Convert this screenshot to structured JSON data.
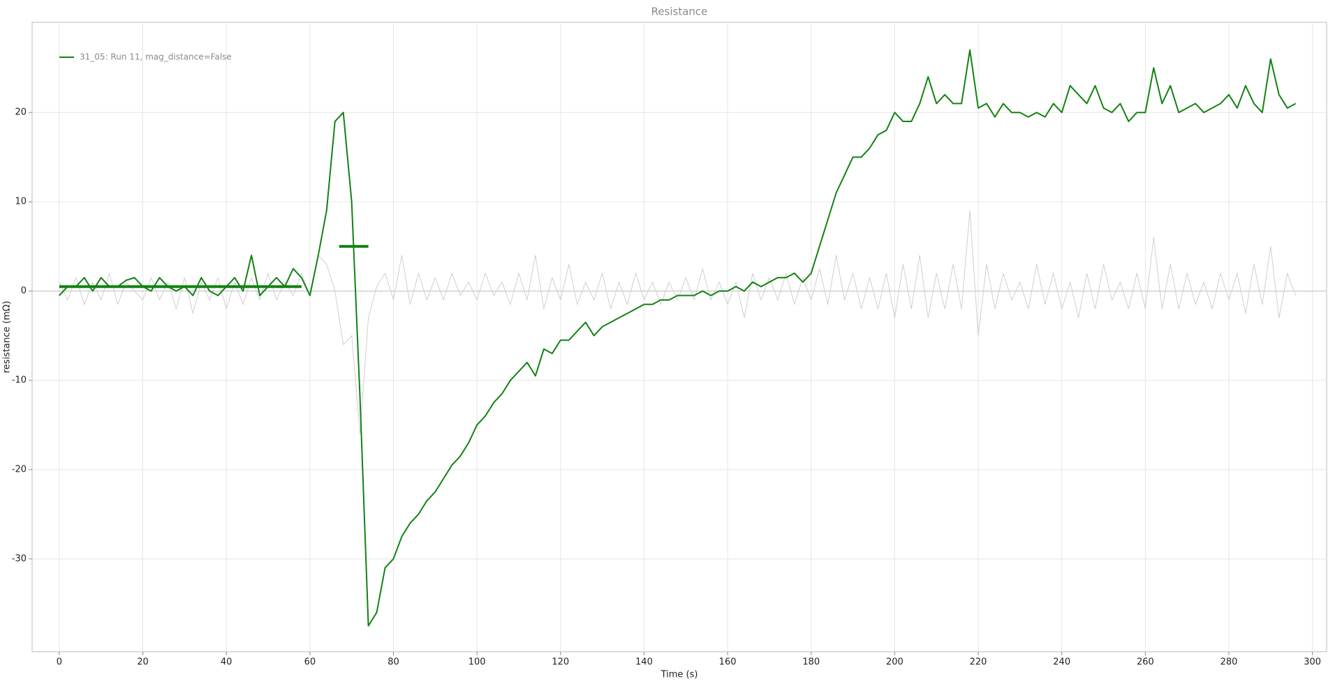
{
  "chart_data": {
    "type": "line",
    "title": "Resistance",
    "x_label": "Time (s)",
    "y_label": "resistance (mΩ)",
    "x": [
      0,
      2,
      4,
      6,
      8,
      10,
      12,
      14,
      16,
      18,
      20,
      22,
      24,
      26,
      28,
      30,
      32,
      34,
      36,
      38,
      40,
      42,
      44,
      46,
      48,
      50,
      52,
      54,
      56,
      58,
      60,
      62,
      64,
      66,
      68,
      70,
      72,
      74,
      76,
      78,
      80,
      82,
      84,
      86,
      88,
      90,
      92,
      94,
      96,
      98,
      100,
      102,
      104,
      106,
      108,
      110,
      112,
      114,
      116,
      118,
      120,
      122,
      124,
      126,
      128,
      130,
      132,
      134,
      136,
      138,
      140,
      142,
      144,
      146,
      148,
      150,
      152,
      154,
      156,
      158,
      160,
      162,
      164,
      166,
      168,
      170,
      172,
      174,
      176,
      178,
      180,
      182,
      184,
      186,
      188,
      190,
      192,
      194,
      196,
      198,
      200,
      202,
      204,
      206,
      208,
      210,
      212,
      214,
      216,
      218,
      220,
      222,
      224,
      226,
      228,
      230,
      232,
      234,
      236,
      238,
      240,
      242,
      244,
      246,
      248,
      250,
      252,
      254,
      256,
      258,
      260,
      262,
      264,
      266,
      268,
      270,
      272,
      274,
      276,
      278,
      280,
      282,
      284,
      286,
      288,
      290,
      292,
      294,
      296
    ],
    "series": [
      {
        "name": "31_05: Run 11, mag_distance=False",
        "color": "#128212",
        "width": 2,
        "values": [
          -0.5,
          0.5,
          0.5,
          1.5,
          0,
          1.5,
          0.5,
          0.5,
          1.2,
          1.5,
          0.5,
          0,
          1.5,
          0.5,
          0,
          0.5,
          -0.5,
          1.5,
          0,
          -0.5,
          0.5,
          1.5,
          0,
          4,
          -0.5,
          0.5,
          1.5,
          0.5,
          2.5,
          1.5,
          -0.5,
          4,
          9,
          19,
          20,
          10,
          -12,
          -37.5,
          -36,
          -31,
          -30,
          -27.5,
          -26,
          -25,
          -23.5,
          -22.5,
          -21,
          -19.5,
          -18.5,
          -17,
          -15,
          -14,
          -12.5,
          -11.5,
          -10,
          -9,
          -8,
          -9.5,
          -6.5,
          -7,
          -5.5,
          -5.5,
          -4.5,
          -3.5,
          -5,
          -4,
          -3.5,
          -3,
          -2.5,
          -2,
          -1.5,
          -1.5,
          -1,
          -1,
          -0.5,
          -0.5,
          -0.5,
          0,
          -0.5,
          0,
          0,
          0.5,
          0,
          1,
          0.5,
          1,
          1.5,
          1.5,
          2,
          1,
          2,
          5,
          8,
          11,
          13,
          15,
          15,
          16,
          17.5,
          18,
          20,
          19,
          19,
          21,
          24,
          21,
          22,
          21,
          21,
          27,
          20.5,
          21,
          19.5,
          21,
          20,
          20,
          19.5,
          20,
          19.5,
          21,
          20,
          23,
          22,
          21,
          23,
          20.5,
          20,
          21,
          19,
          20,
          20,
          25,
          21,
          23,
          20,
          20.5,
          21,
          20,
          20.5,
          21,
          22,
          20.5,
          23,
          21,
          20,
          26,
          22,
          20.5,
          21
        ]
      },
      {
        "color": "#cfcfcf",
        "width": 1,
        "values": [
          1,
          -1,
          1.5,
          -1.5,
          1,
          -1,
          2,
          -1.5,
          1,
          0,
          -1,
          1.5,
          -1,
          1,
          -2,
          1.5,
          -2.5,
          1,
          -1,
          1.5,
          -2,
          1,
          -1.5,
          1.5,
          -1,
          2,
          -1,
          1,
          -0.5,
          2,
          -0.5,
          4,
          3,
          0,
          -6,
          -5,
          -16,
          -3,
          0.5,
          2,
          -1,
          4,
          -1.5,
          2,
          -1,
          1.5,
          -1,
          2,
          -0.5,
          1,
          -1,
          2,
          -0.5,
          1,
          -1.5,
          2,
          -1,
          4,
          -2,
          1.5,
          -1,
          3,
          -1.5,
          1,
          -1,
          2,
          -2,
          1,
          -1.5,
          2,
          -1,
          1,
          -1.5,
          1,
          -1,
          1.5,
          -1,
          2.5,
          -1,
          1,
          -1.5,
          1,
          -3,
          2,
          -1,
          1.5,
          -1,
          2,
          -1.5,
          1.5,
          -1,
          2.5,
          -1.5,
          4,
          -1,
          2,
          -2,
          1.5,
          -2,
          2,
          -3,
          3,
          -2,
          4,
          -3,
          2,
          -2,
          3,
          -2,
          9,
          -5,
          3,
          -2,
          2,
          -1,
          1,
          -2,
          3,
          -1.5,
          2,
          -2,
          1,
          -3,
          2,
          -2,
          3,
          -1,
          1,
          -2,
          2,
          -2,
          6,
          -2,
          3,
          -2,
          2,
          -1.5,
          1,
          -2,
          2,
          -1,
          2,
          -2.5,
          3,
          -1.5,
          5,
          -3,
          2,
          -0.5
        ]
      },
      {
        "color": "#128212",
        "width": 4,
        "x": [
          0,
          58
        ],
        "values": [
          0.5,
          0.5
        ]
      },
      {
        "color": "#128212",
        "width": 4,
        "x": [
          67,
          74
        ],
        "values": [
          5,
          5
        ]
      }
    ],
    "xlim": [
      -6.5,
      303.4
    ],
    "ylim": [
      -40.4,
      30.1
    ],
    "xticks": [
      0,
      20,
      40,
      60,
      80,
      100,
      120,
      140,
      160,
      180,
      200,
      220,
      240,
      260,
      280,
      300
    ],
    "yticks": [
      -30,
      -20,
      -10,
      0,
      10,
      20
    ],
    "grid": true,
    "legend": "upper left"
  }
}
